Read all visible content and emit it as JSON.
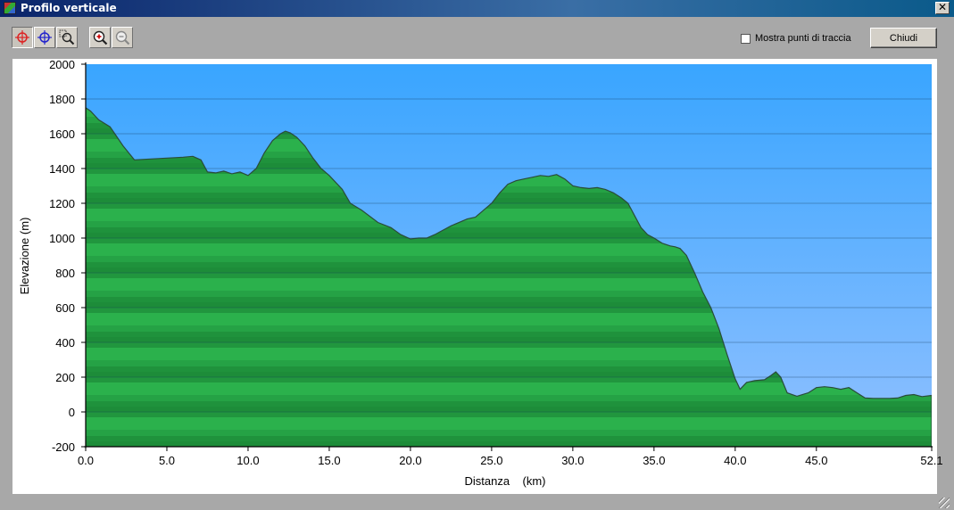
{
  "window": {
    "title": "Profilo verticale",
    "close_label": "✕"
  },
  "toolbar": {
    "tools": [
      {
        "name": "crosshair-red-tool",
        "icon": "crosshair-red-icon",
        "active": true
      },
      {
        "name": "crosshair-blue-tool",
        "icon": "crosshair-blue-icon",
        "active": false
      },
      {
        "name": "zoom-area-tool",
        "icon": "zoom-rect-icon",
        "active": false
      },
      {
        "name": "zoom-in-tool",
        "icon": "zoom-in-icon",
        "active": false
      },
      {
        "name": "zoom-out-tool",
        "icon": "zoom-out-icon",
        "active": false
      }
    ],
    "checkbox_label": "Mostra punti di traccia",
    "checkbox_checked": false,
    "close_button_label": "Chiudi"
  },
  "chart_data": {
    "type": "area",
    "xlabel": "Distanza    (km)",
    "ylabel": "Elevazione (m)",
    "xlim": [
      0,
      52.1
    ],
    "ylim": [
      -200,
      2000
    ],
    "x_ticks": [
      "0.0",
      "5.0",
      "10.0",
      "15.0",
      "20.0",
      "25.0",
      "30.0",
      "35.0",
      "40.0",
      "45.0",
      "52.1"
    ],
    "x_tick_values": [
      0,
      5,
      10,
      15,
      20,
      25,
      30,
      35,
      40,
      45,
      52.1
    ],
    "y_ticks": [
      "2000",
      "1800",
      "1600",
      "1400",
      "1200",
      "1000",
      "800",
      "600",
      "400",
      "200",
      "0",
      "-200"
    ],
    "y_tick_values": [
      2000,
      1800,
      1600,
      1400,
      1200,
      1000,
      800,
      600,
      400,
      200,
      0,
      -200
    ],
    "grid": true,
    "colors": {
      "sky_top": "#39a5ff",
      "sky_bottom": "#8ec0ff",
      "terrain_light": "#2db14c",
      "terrain_dark": "#1a8a38",
      "outline": "#2b4a3a"
    },
    "series": [
      {
        "x": [
          0,
          0.3,
          0.8,
          1.5,
          2.3,
          3.0,
          4.0,
          5.0,
          6.0,
          6.6,
          7.1,
          7.5,
          8.0,
          8.5,
          9.0,
          9.5,
          10.0,
          10.5,
          11.0,
          11.5,
          12.0,
          12.3,
          12.6,
          13.0,
          13.5,
          14.0,
          14.5,
          15.0,
          15.8,
          16.3,
          17.0,
          18.0,
          18.8,
          19.4,
          20.0,
          20.5,
          21.0,
          21.5,
          22.5,
          23.5,
          24.0,
          24.5,
          25.0,
          25.5,
          26.0,
          26.5,
          27.0,
          27.5,
          28.0,
          28.5,
          29.0,
          29.5,
          30.0,
          30.5,
          31.0,
          31.5,
          32.0,
          32.5,
          33.0,
          33.4,
          33.8,
          34.2,
          34.6,
          35.0,
          35.5,
          36.0,
          36.3,
          36.6,
          37.0,
          37.5,
          38.0,
          38.5,
          39.0,
          39.5,
          40.0,
          40.3,
          40.7,
          41.2,
          41.8,
          42.2,
          42.5,
          42.8,
          43.2,
          43.8,
          44.5,
          45.0,
          45.5,
          46.0,
          46.5,
          47.0,
          47.5,
          48.0,
          48.5,
          49.0,
          49.5,
          50.0,
          50.5,
          51.0,
          51.5,
          52.1
        ],
        "y": [
          1750,
          1730,
          1680,
          1640,
          1530,
          1450,
          1455,
          1460,
          1465,
          1470,
          1450,
          1380,
          1375,
          1385,
          1370,
          1380,
          1360,
          1400,
          1490,
          1560,
          1600,
          1615,
          1605,
          1580,
          1530,
          1460,
          1400,
          1360,
          1280,
          1200,
          1160,
          1090,
          1060,
          1020,
          995,
          1000,
          1000,
          1020,
          1070,
          1110,
          1120,
          1160,
          1200,
          1260,
          1310,
          1330,
          1340,
          1350,
          1360,
          1355,
          1365,
          1340,
          1300,
          1290,
          1285,
          1290,
          1280,
          1260,
          1230,
          1200,
          1130,
          1060,
          1020,
          1000,
          970,
          955,
          950,
          940,
          900,
          800,
          690,
          600,
          480,
          330,
          190,
          130,
          170,
          180,
          185,
          210,
          230,
          200,
          110,
          90,
          110,
          140,
          145,
          140,
          130,
          140,
          110,
          80,
          78,
          78,
          78,
          80,
          95,
          100,
          88,
          95
        ]
      }
    ]
  }
}
